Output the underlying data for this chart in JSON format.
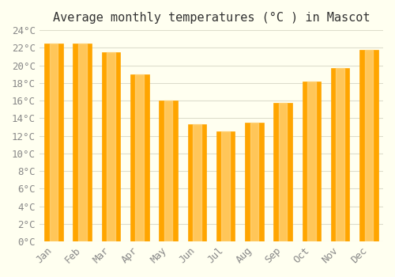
{
  "title": "Average monthly temperatures (°C ) in Mascot",
  "months": [
    "Jan",
    "Feb",
    "Mar",
    "Apr",
    "May",
    "Jun",
    "Jul",
    "Aug",
    "Sep",
    "Oct",
    "Nov",
    "Dec"
  ],
  "values": [
    22.5,
    22.5,
    21.5,
    19.0,
    16.0,
    13.3,
    12.5,
    13.5,
    15.7,
    18.2,
    19.7,
    21.8
  ],
  "bar_color_main": "#FFA500",
  "bar_color_light": "#FFD580",
  "ylim": [
    0,
    24
  ],
  "yticks": [
    0,
    2,
    4,
    6,
    8,
    10,
    12,
    14,
    16,
    18,
    20,
    22,
    24
  ],
  "ytick_labels": [
    "0°C",
    "2°C",
    "4°C",
    "6°C",
    "8°C",
    "10°C",
    "12°C",
    "14°C",
    "16°C",
    "18°C",
    "20°C",
    "22°C",
    "24°C"
  ],
  "background_color": "#fffff0",
  "grid_color": "#ddddcc",
  "title_fontsize": 11,
  "tick_fontsize": 9,
  "font_family": "monospace"
}
